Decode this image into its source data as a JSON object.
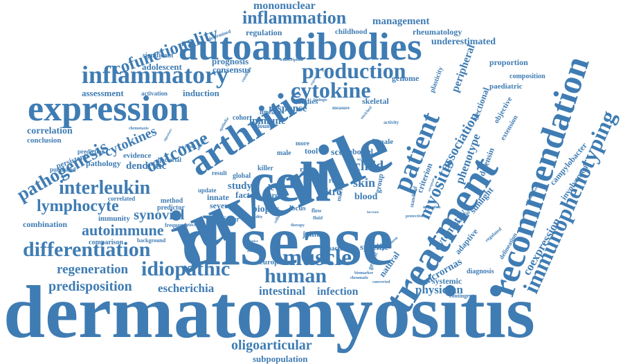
{
  "word_color": "#3f7cb3",
  "background": "#ffffff",
  "words": [
    "dermatomyositis",
    "juvenile",
    "disease",
    "cell",
    "treatment",
    "recommendation",
    "autoantibodies",
    "expression",
    "arthritis",
    "inflammatory",
    "production",
    "cytokine",
    "patient",
    "immunophenotyping",
    "inflammation",
    "cofunctionality",
    "mononuclear",
    "interleukin",
    "pathogenesis",
    "differentiation",
    "muscle",
    "human",
    "idiopathic",
    "lymphocyte",
    "outcome",
    "cytokines",
    "myositis",
    "autoimmune",
    "regeneration",
    "predisposition",
    "oligoarticular",
    "subpopulation",
    "intestinal",
    "infection",
    "physician",
    "escherichia",
    "synovial",
    "dendritic",
    "association",
    "phenotype",
    "coexpression",
    "cytometry",
    "micrornas",
    "management",
    "regulation",
    "childhood",
    "rheumatology",
    "underestimated",
    "proportion",
    "composition",
    "paediatric",
    "campylobacter",
    "involvement",
    "assessment",
    "adolescent",
    "consensus",
    "prognosis",
    "significant",
    "activation",
    "induction",
    "correlation",
    "conclusion",
    "response",
    "immune",
    "skeletal",
    "genome",
    "peripheral",
    "sectional",
    "defensin",
    "criterion",
    "plasticity",
    "objective",
    "extension",
    "natural",
    "adaptive",
    "sunlight",
    "specific",
    "blood",
    "skin",
    "child",
    "group",
    "female",
    "score",
    "vitro",
    "tool",
    "study",
    "innate",
    "factor",
    "severe",
    "biopsy",
    "level",
    "cross",
    "locus",
    "joint",
    "inactive",
    "europe",
    "systemic",
    "diagnosis",
    "contingent",
    "delineation",
    "combination",
    "immunity",
    "comparison",
    "background",
    "pathology",
    "evidence",
    "persistent",
    "published",
    "prediction",
    "correlated",
    "bacterial",
    "method",
    "predictor",
    "update",
    "higher",
    "frequency",
    "detectable",
    "cohort",
    "lineage",
    "studies",
    "global",
    "result",
    "killer",
    "male",
    "more",
    "bowel",
    "risk",
    "role",
    "marker",
    "transcription",
    "determined",
    "chemotaxis",
    "activity",
    "biomarkers",
    "biomarker",
    "migration",
    "protective",
    "regulated",
    "analysis",
    "european",
    "standard",
    "genetic",
    "enrichment",
    "converted",
    "rheumatic",
    "initiative",
    "autologous",
    "therapy",
    "validity",
    "cellular",
    "measure",
    "enriched",
    "biologic",
    "condition",
    "expansion",
    "increase",
    "scoring",
    "microbial",
    "signature",
    "seventy",
    "dount",
    "epithelia",
    "flow",
    "fluid"
  ]
}
